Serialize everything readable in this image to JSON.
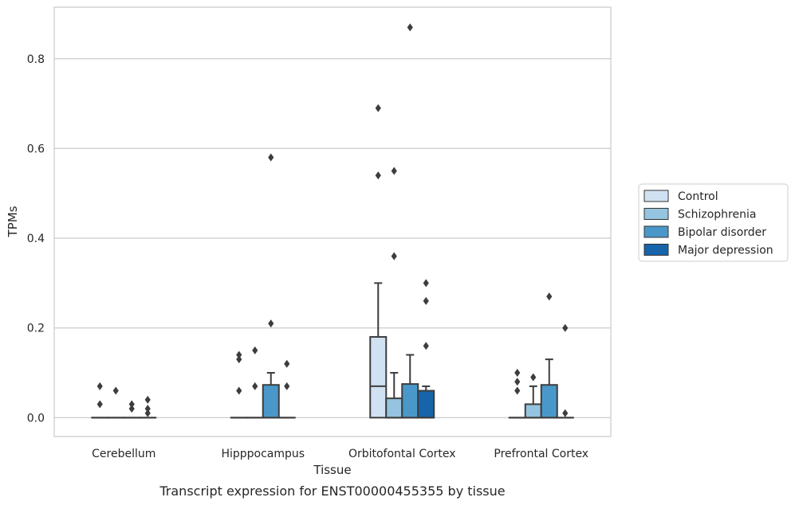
{
  "chart_data": {
    "type": "box",
    "title": "Transcript expression for ENST00000455355 by tissue",
    "xlabel": "Tissue",
    "ylabel": "TPMs",
    "ylim": [
      -0.042,
      0.915
    ],
    "yticks": [
      0.0,
      0.2,
      0.4,
      0.6,
      0.8
    ],
    "ytick_labels": [
      "0.0",
      "0.2",
      "0.4",
      "0.6",
      "0.8"
    ],
    "grid": "horizontal",
    "legend_position": "right",
    "categories": [
      "Cerebellum",
      "Hipppocampus",
      "Orbitofontal Cortex",
      "Prefrontal Cortex"
    ],
    "series": [
      {
        "name": "Control",
        "color": "#d0e1f2",
        "boxes": [
          {
            "q1": 0,
            "median": 0,
            "q3": 0,
            "whisker_low": 0,
            "whisker_high": 0,
            "outliers": [
              0.07,
              0.03
            ]
          },
          {
            "q1": 0,
            "median": 0,
            "q3": 0,
            "whisker_low": 0,
            "whisker_high": 0,
            "outliers": [
              0.14,
              0.13,
              0.06
            ]
          },
          {
            "q1": 0,
            "median": 0.07,
            "q3": 0.18,
            "whisker_low": 0,
            "whisker_high": 0.3,
            "outliers": [
              0.69,
              0.54
            ]
          },
          {
            "q1": 0,
            "median": 0,
            "q3": 0,
            "whisker_low": 0,
            "whisker_high": 0,
            "outliers": [
              0.1,
              0.08,
              0.06
            ]
          }
        ]
      },
      {
        "name": "Schizophrenia",
        "color": "#94c4df",
        "boxes": [
          {
            "q1": 0,
            "median": 0,
            "q3": 0,
            "whisker_low": 0,
            "whisker_high": 0,
            "outliers": [
              0.06
            ]
          },
          {
            "q1": 0,
            "median": 0,
            "q3": 0,
            "whisker_low": 0,
            "whisker_high": 0,
            "outliers": [
              0.15,
              0.07
            ]
          },
          {
            "q1": 0,
            "median": 0,
            "q3": 0.043,
            "whisker_low": 0,
            "whisker_high": 0.1,
            "outliers": [
              0.55,
              0.36
            ]
          },
          {
            "q1": 0,
            "median": 0,
            "q3": 0.03,
            "whisker_low": 0,
            "whisker_high": 0.07,
            "outliers": [
              0.09
            ]
          }
        ]
      },
      {
        "name": "Bipolar disorder",
        "color": "#4a98c9",
        "boxes": [
          {
            "q1": 0,
            "median": 0,
            "q3": 0,
            "whisker_low": 0,
            "whisker_high": 0,
            "outliers": [
              0.03,
              0.02
            ]
          },
          {
            "q1": 0,
            "median": 0,
            "q3": 0.073,
            "whisker_low": 0,
            "whisker_high": 0.1,
            "outliers": [
              0.58,
              0.21
            ]
          },
          {
            "q1": 0,
            "median": 0,
            "q3": 0.075,
            "whisker_low": 0,
            "whisker_high": 0.14,
            "outliers": [
              0.87
            ]
          },
          {
            "q1": 0,
            "median": 0,
            "q3": 0.073,
            "whisker_low": 0,
            "whisker_high": 0.13,
            "outliers": [
              0.27
            ]
          }
        ]
      },
      {
        "name": "Major depression",
        "color": "#1764ab",
        "boxes": [
          {
            "q1": 0,
            "median": 0,
            "q3": 0,
            "whisker_low": 0,
            "whisker_high": 0,
            "outliers": [
              0.04,
              0.02,
              0.01
            ]
          },
          {
            "q1": 0,
            "median": 0,
            "q3": 0,
            "whisker_low": 0,
            "whisker_high": 0,
            "outliers": [
              0.12,
              0.07
            ]
          },
          {
            "q1": 0,
            "median": 0,
            "q3": 0.06,
            "whisker_low": 0,
            "whisker_high": 0.07,
            "outliers": [
              0.3,
              0.26,
              0.16
            ]
          },
          {
            "q1": 0,
            "median": 0,
            "q3": 0,
            "whisker_low": 0,
            "whisker_high": 0,
            "outliers": [
              0.2,
              0.01
            ]
          }
        ]
      }
    ]
  }
}
